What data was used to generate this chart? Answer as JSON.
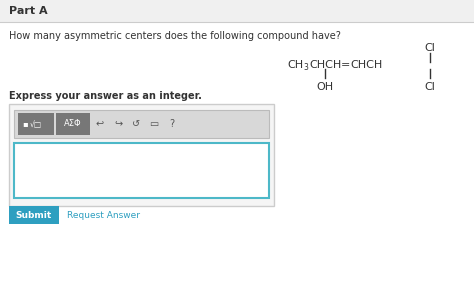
{
  "title": "Part A",
  "question": "How many asymmetric centers does the following compound have?",
  "express_text": "Express your answer as an integer.",
  "submit_text": "Submit",
  "request_text": "Request Answer",
  "bg_color": "#ffffff",
  "header_bg": "#f0f0f0",
  "header_border": "#cccccc",
  "input_border": "#4db8c8",
  "submit_bg": "#2e9fc0",
  "submit_text_color": "#ffffff",
  "link_color": "#2e9fc0",
  "text_color": "#333333",
  "toolbar_bg": "#d8d8d8",
  "btn_bg": "#777777"
}
